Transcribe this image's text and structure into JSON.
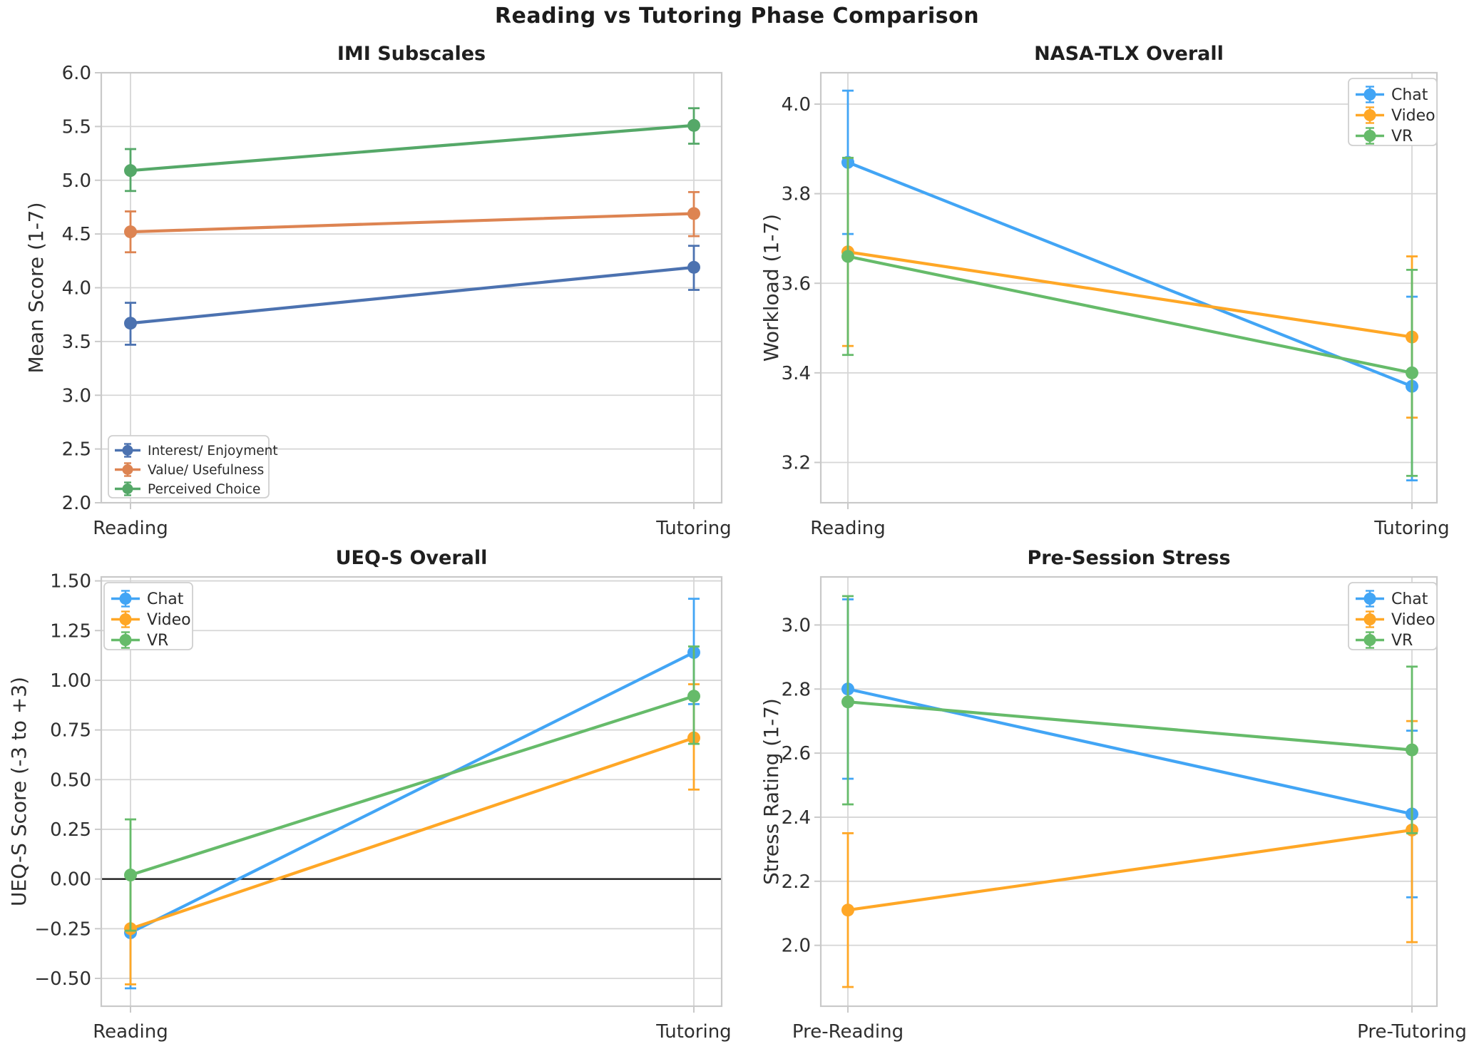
{
  "figure": {
    "title": "Reading vs Tutoring Phase Comparison",
    "background": "#ffffff",
    "grid_color": "#d6d6d6",
    "spine_color": "#c9c9c9",
    "text_color": "#2f2f2f",
    "title_color": "#1f1f1f"
  },
  "chart_data": [
    {
      "type": "line",
      "title": "IMI Subscales",
      "ylabel": "Mean Score (1-7)",
      "categories": [
        "Reading",
        "Tutoring"
      ],
      "ylim": [
        2.0,
        6.0
      ],
      "yticks": [
        2.0,
        2.5,
        3.0,
        3.5,
        4.0,
        4.5,
        5.0,
        5.5,
        6.0
      ],
      "ytick_decimals": 1,
      "grid": true,
      "zero_line": false,
      "legend_position": "lower left",
      "series": [
        {
          "name": "Interest/ Enjoyment",
          "color": "#4C72B0",
          "values": [
            3.67,
            4.19
          ],
          "err_low": [
            3.47,
            3.98
          ],
          "err_high": [
            3.86,
            4.39
          ]
        },
        {
          "name": "Value/ Usefulness",
          "color": "#DD8452",
          "values": [
            4.52,
            4.69
          ],
          "err_low": [
            4.33,
            4.48
          ],
          "err_high": [
            4.71,
            4.89
          ]
        },
        {
          "name": "Perceived Choice",
          "color": "#55A868",
          "values": [
            5.09,
            5.51
          ],
          "err_low": [
            4.9,
            5.34
          ],
          "err_high": [
            5.29,
            5.67
          ]
        }
      ]
    },
    {
      "type": "line",
      "title": "NASA-TLX Overall",
      "ylabel": "Workload (1-7)",
      "categories": [
        "Reading",
        "Tutoring"
      ],
      "ylim": [
        3.11,
        4.07
      ],
      "yticks": [
        3.2,
        3.4,
        3.6,
        3.8,
        4.0
      ],
      "ytick_decimals": 1,
      "grid": true,
      "zero_line": false,
      "legend_position": "upper right",
      "series": [
        {
          "name": "Chat",
          "color": "#42A5F5",
          "values": [
            3.87,
            3.37
          ],
          "err_low": [
            3.71,
            3.16
          ],
          "err_high": [
            4.03,
            3.57
          ]
        },
        {
          "name": "Video",
          "color": "#FFA726",
          "values": [
            3.67,
            3.48
          ],
          "err_low": [
            3.46,
            3.3
          ],
          "err_high": [
            3.88,
            3.66
          ]
        },
        {
          "name": "VR",
          "color": "#66BB6A",
          "values": [
            3.66,
            3.4
          ],
          "err_low": [
            3.44,
            3.17
          ],
          "err_high": [
            3.88,
            3.63
          ]
        }
      ]
    },
    {
      "type": "line",
      "title": "UEQ-S Overall",
      "ylabel": "UEQ-S Score (-3 to +3)",
      "categories": [
        "Reading",
        "Tutoring"
      ],
      "ylim": [
        -0.64,
        1.52
      ],
      "yticks": [
        -0.5,
        -0.25,
        0.0,
        0.25,
        0.5,
        0.75,
        1.0,
        1.25,
        1.5
      ],
      "ytick_decimals": 2,
      "grid": true,
      "zero_line": true,
      "legend_position": "upper left",
      "series": [
        {
          "name": "Chat",
          "color": "#42A5F5",
          "values": [
            -0.27,
            1.14
          ],
          "err_low": [
            -0.55,
            0.88
          ],
          "err_high": [
            0.01,
            1.41
          ]
        },
        {
          "name": "Video",
          "color": "#FFA726",
          "values": [
            -0.25,
            0.71
          ],
          "err_low": [
            -0.53,
            0.45
          ],
          "err_high": [
            0.03,
            0.98
          ]
        },
        {
          "name": "VR",
          "color": "#66BB6A",
          "values": [
            0.02,
            0.92
          ],
          "err_low": [
            -0.26,
            0.68
          ],
          "err_high": [
            0.3,
            1.17
          ]
        }
      ]
    },
    {
      "type": "line",
      "title": "Pre-Session Stress",
      "ylabel": "Stress Rating (1-7)",
      "categories": [
        "Pre-Reading",
        "Pre-Tutoring"
      ],
      "ylim": [
        1.81,
        3.15
      ],
      "yticks": [
        2.0,
        2.2,
        2.4,
        2.6,
        2.8,
        3.0
      ],
      "ytick_decimals": 1,
      "grid": true,
      "zero_line": false,
      "legend_position": "upper right",
      "series": [
        {
          "name": "Chat",
          "color": "#42A5F5",
          "values": [
            2.8,
            2.41
          ],
          "err_low": [
            2.52,
            2.15
          ],
          "err_high": [
            3.08,
            2.67
          ]
        },
        {
          "name": "Video",
          "color": "#FFA726",
          "values": [
            2.11,
            2.36
          ],
          "err_low": [
            1.87,
            2.01
          ],
          "err_high": [
            2.35,
            2.7
          ]
        },
        {
          "name": "VR",
          "color": "#66BB6A",
          "values": [
            2.76,
            2.61
          ],
          "err_low": [
            2.44,
            2.35
          ],
          "err_high": [
            3.09,
            2.87
          ]
        }
      ]
    }
  ]
}
